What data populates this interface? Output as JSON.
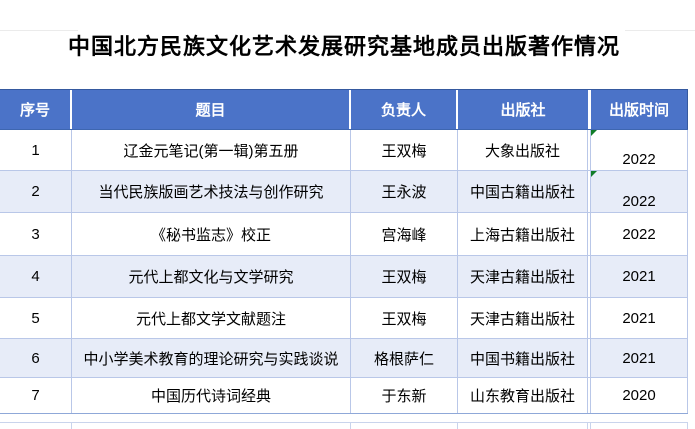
{
  "title": "中国北方民族文化艺术发展研究基地成员出版著作情况",
  "table": {
    "columns": [
      {
        "key": "serial",
        "label": "序号"
      },
      {
        "key": "title",
        "label": "题目"
      },
      {
        "key": "person",
        "label": "负责人"
      },
      {
        "key": "publisher",
        "label": "出版社"
      },
      {
        "key": "year",
        "label": "出版时间"
      }
    ],
    "rows": [
      {
        "serial": "1",
        "title": "辽金元笔记(第一辑)第五册",
        "person": "王双梅",
        "publisher": "大象出版社",
        "year": "2022",
        "year_bottom_aligned": true,
        "error_marker": true
      },
      {
        "serial": "2",
        "title": "当代民族版画艺术技法与创作研究",
        "person": "王永波",
        "publisher": "中国古籍出版社",
        "year": "2022",
        "year_bottom_aligned": true,
        "error_marker": true
      },
      {
        "serial": "3",
        "title": "《秘书监志》校正",
        "person": "宫海峰",
        "publisher": "上海古籍出版社",
        "year": "2022",
        "year_bottom_aligned": false,
        "error_marker": false
      },
      {
        "serial": "4",
        "title": "元代上都文化与文学研究",
        "person": "王双梅",
        "publisher": "天津古籍出版社",
        "year": "2021",
        "year_bottom_aligned": false,
        "error_marker": false
      },
      {
        "serial": "5",
        "title": "元代上都文学文献题注",
        "person": "王双梅",
        "publisher": "天津古籍出版社",
        "year": "2021",
        "year_bottom_aligned": false,
        "error_marker": false
      },
      {
        "serial": "6",
        "title": "中小学美术教育的理论研究与实践谈说",
        "person": "格根萨仁",
        "publisher": "中国书籍出版社",
        "year": "2021",
        "year_bottom_aligned": false,
        "error_marker": false
      },
      {
        "serial": "7",
        "title": "中国历代诗词经典",
        "person": "于东新",
        "publisher": "山东教育出版社",
        "year": "2020",
        "year_bottom_aligned": false,
        "error_marker": false
      }
    ]
  },
  "icons": {
    "error_marker": "excel-error-indicator-triangle"
  },
  "colors": {
    "header_bg": "#4b73c8",
    "band_bg": "#e7ecf8",
    "border": "#b9c7e8",
    "header_border_dark": "#35599f",
    "marker_green": "#107c28"
  }
}
